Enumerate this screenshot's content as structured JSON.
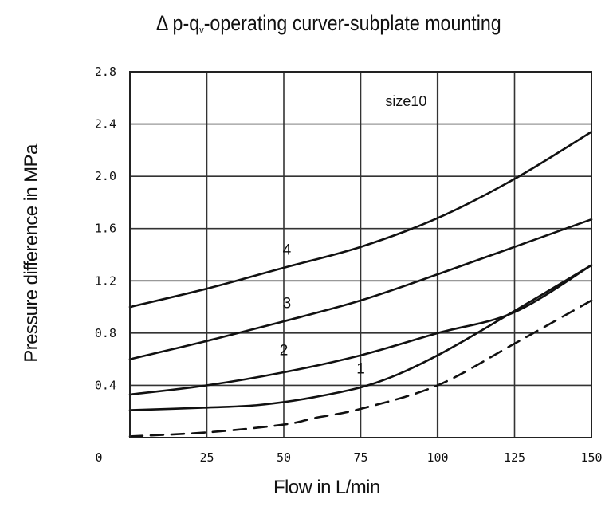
{
  "chart_data": {
    "type": "line",
    "title": "Δ p-q",
    "title_subscript": "v",
    "title_rest": "-operating curver-subplate mounting",
    "xlabel": "Flow in L/min",
    "ylabel": "Pressure difference in MPa",
    "xlim": [
      0,
      150
    ],
    "ylim": [
      0,
      2.8
    ],
    "x_ticks": [
      {
        "value": 0,
        "label": "0"
      },
      {
        "value": 25,
        "label": "25"
      },
      {
        "value": 50,
        "label": "50"
      },
      {
        "value": 75,
        "label": "75"
      },
      {
        "value": 100,
        "label": "100"
      },
      {
        "value": 125,
        "label": "125"
      },
      {
        "value": 150,
        "label": "150"
      }
    ],
    "y_ticks": [
      {
        "value": 0.4,
        "label": "0.4"
      },
      {
        "value": 0.8,
        "label": "0.8"
      },
      {
        "value": 1.2,
        "label": "1.2"
      },
      {
        "value": 1.6,
        "label": "1.6"
      },
      {
        "value": 2.0,
        "label": "2.0"
      },
      {
        "value": 2.4,
        "label": "2.4"
      },
      {
        "value": 2.8,
        "label": "2.8"
      }
    ],
    "grid": true,
    "annotation": {
      "text": "size10",
      "x": 83,
      "y": 2.5
    },
    "series": [
      {
        "name": "4",
        "style": "solid",
        "x": [
          0,
          25,
          50,
          75,
          100,
          125,
          150
        ],
        "y": [
          1.0,
          1.14,
          1.3,
          1.46,
          1.68,
          1.98,
          2.34
        ],
        "label_at": {
          "x": 51,
          "y": 1.4
        }
      },
      {
        "name": "3",
        "style": "solid",
        "x": [
          0,
          25,
          50,
          75,
          100,
          125,
          150
        ],
        "y": [
          0.6,
          0.74,
          0.89,
          1.05,
          1.25,
          1.46,
          1.67
        ],
        "label_at": {
          "x": 51,
          "y": 0.99
        }
      },
      {
        "name": "2",
        "style": "solid",
        "x": [
          0,
          25,
          50,
          75,
          100,
          125,
          150
        ],
        "y": [
          0.33,
          0.4,
          0.5,
          0.63,
          0.8,
          0.96,
          1.32
        ],
        "label_at": {
          "x": 50,
          "y": 0.63
        }
      },
      {
        "name": "1",
        "style": "solid",
        "x": [
          0,
          25,
          42,
          60,
          80,
          100,
          125,
          150
        ],
        "y": [
          0.21,
          0.23,
          0.25,
          0.31,
          0.42,
          0.63,
          0.97,
          1.32
        ],
        "label_at": {
          "x": 75,
          "y": 0.49
        }
      },
      {
        "name": "",
        "style": "dashed",
        "x": [
          0,
          25,
          50,
          60,
          75,
          100,
          125,
          150
        ],
        "y": [
          0.01,
          0.04,
          0.1,
          0.15,
          0.22,
          0.4,
          0.72,
          1.05
        ]
      }
    ]
  }
}
